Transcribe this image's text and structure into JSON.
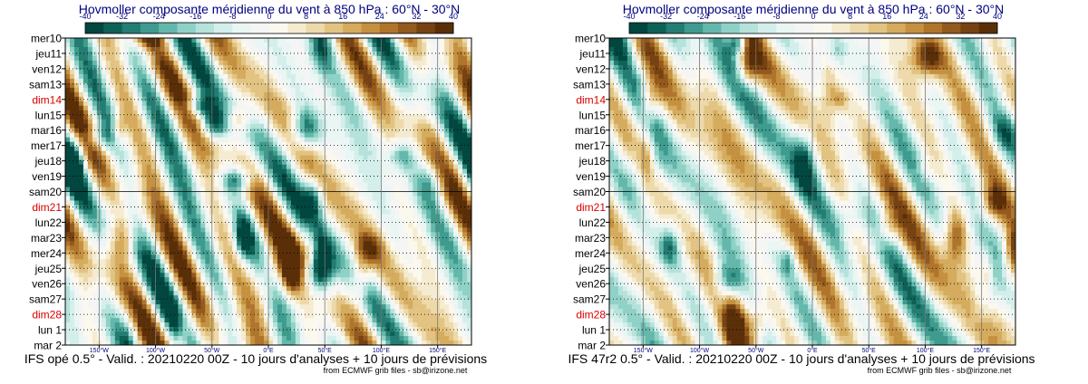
{
  "colors": {
    "title": "#000080",
    "weekend": "#dd0000",
    "text": "#000000"
  },
  "scale": {
    "ticks": [
      "-40",
      "-32",
      "-24",
      "-16",
      "-8",
      "0",
      "8",
      "16",
      "24",
      "32",
      "40"
    ],
    "swatches": [
      "#01463f",
      "#0e6157",
      "#247d72",
      "#3e9b8e",
      "#64b8ab",
      "#8fd1c6",
      "#b5e2db",
      "#d4efeb",
      "#eaf6f4",
      "#f5f5f5",
      "#fbf8ee",
      "#f5ebd0",
      "#edd9a9",
      "#e2c382",
      "#d5ab5e",
      "#c59140",
      "#af752c",
      "#93591d",
      "#764211",
      "#5a2f08"
    ]
  },
  "chart_data": [
    {
      "type": "heatmap",
      "title": "Hovmoller composante méridienne du vent à 850 hPa : 60°N - 30°N",
      "footer": "IFS opé 0.5° - Valid. : 20210220 00Z - 10 jours d'analyses + 10 jours de prévisions",
      "credit": "from ECMWF grib files - sb@irizone.net",
      "seed": 7,
      "rows": [
        {
          "label": "mer10",
          "weekend": false
        },
        {
          "label": "jeu11",
          "weekend": false
        },
        {
          "label": "ven12",
          "weekend": false
        },
        {
          "label": "sam13",
          "weekend": false
        },
        {
          "label": "dim14",
          "weekend": true
        },
        {
          "label": "lun15",
          "weekend": false
        },
        {
          "label": "mar16",
          "weekend": false
        },
        {
          "label": "mer17",
          "weekend": false
        },
        {
          "label": "jeu18",
          "weekend": false
        },
        {
          "label": "ven19",
          "weekend": false
        },
        {
          "label": "sam20",
          "weekend": false
        },
        {
          "label": "dim21",
          "weekend": true
        },
        {
          "label": "lun22",
          "weekend": false
        },
        {
          "label": "mar23",
          "weekend": false
        },
        {
          "label": "mer24",
          "weekend": false
        },
        {
          "label": "jeu25",
          "weekend": false
        },
        {
          "label": "ven26",
          "weekend": false
        },
        {
          "label": "sam27",
          "weekend": false
        },
        {
          "label": "dim28",
          "weekend": true
        },
        {
          "label": "lun 1",
          "weekend": false
        },
        {
          "label": "mar 2",
          "weekend": false
        }
      ],
      "x_ticks": [
        {
          "lon": -150,
          "label": "150°W"
        },
        {
          "lon": -100,
          "label": "100°W"
        },
        {
          "lon": -50,
          "label": "50°W"
        },
        {
          "lon": 0,
          "label": "0°E"
        },
        {
          "lon": 50,
          "label": "50°E"
        },
        {
          "lon": 100,
          "label": "100°E"
        },
        {
          "lon": 150,
          "label": "150°E"
        }
      ],
      "xlim": [
        -180,
        180
      ],
      "analysis_end_row": 10
    },
    {
      "type": "heatmap",
      "title": "Hovmoller composante méridienne du vent à 850 hPa : 60°N - 30°N",
      "footer": "IFS 47r2 0.5° - Valid. : 20210220 00Z - 10 jours d'analyses + 10 jours de prévisions",
      "credit": "from ECMWF grib files - sb@irizone.net",
      "seed": 11,
      "rows": [
        {
          "label": "mer10",
          "weekend": false
        },
        {
          "label": "jeu11",
          "weekend": false
        },
        {
          "label": "ven12",
          "weekend": false
        },
        {
          "label": "sam13",
          "weekend": false
        },
        {
          "label": "dim14",
          "weekend": true
        },
        {
          "label": "lun15",
          "weekend": false
        },
        {
          "label": "mar16",
          "weekend": false
        },
        {
          "label": "mer17",
          "weekend": false
        },
        {
          "label": "jeu18",
          "weekend": false
        },
        {
          "label": "ven19",
          "weekend": false
        },
        {
          "label": "sam20",
          "weekend": false
        },
        {
          "label": "dim21",
          "weekend": true
        },
        {
          "label": "lun22",
          "weekend": false
        },
        {
          "label": "mar23",
          "weekend": false
        },
        {
          "label": "mer24",
          "weekend": false
        },
        {
          "label": "jeu25",
          "weekend": false
        },
        {
          "label": "ven26",
          "weekend": false
        },
        {
          "label": "sam27",
          "weekend": false
        },
        {
          "label": "dim28",
          "weekend": true
        },
        {
          "label": "lun 1",
          "weekend": false
        },
        {
          "label": "mar 2",
          "weekend": false
        }
      ],
      "x_ticks": [
        {
          "lon": -150,
          "label": "150°W"
        },
        {
          "lon": -100,
          "label": "100°W"
        },
        {
          "lon": -50,
          "label": "50°W"
        },
        {
          "lon": 0,
          "label": "0°E"
        },
        {
          "lon": 50,
          "label": "50°E"
        },
        {
          "lon": 100,
          "label": "100°E"
        },
        {
          "lon": 150,
          "label": "150°E"
        }
      ],
      "xlim": [
        -180,
        180
      ],
      "analysis_end_row": 10
    }
  ]
}
